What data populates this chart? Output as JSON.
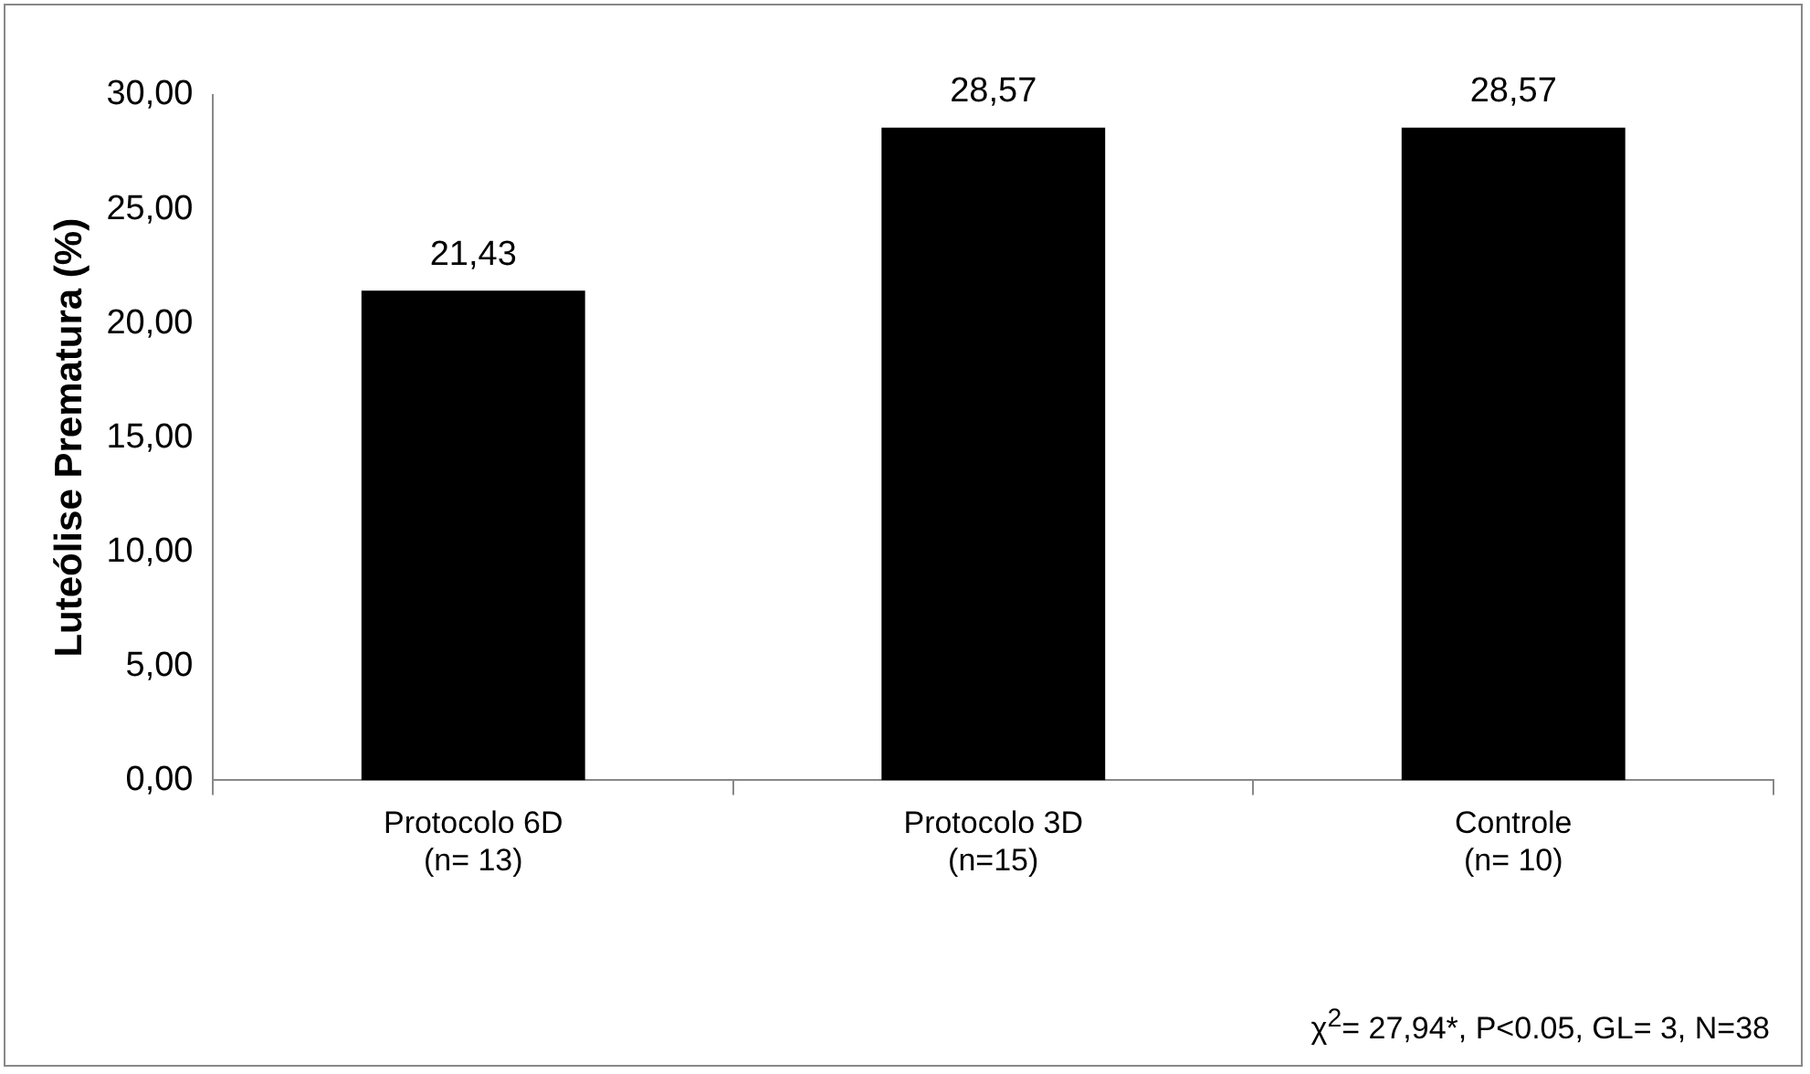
{
  "chart_data": {
    "type": "bar",
    "ylabel": "Luteólise Prematura (%)",
    "categories": [
      "Protocolo 6D\n(n= 13)",
      "Protocolo 3D\n(n=15)",
      "Controle\n(n= 10)"
    ],
    "values": [
      21.43,
      28.57,
      28.57
    ],
    "color": "#000000",
    "value_labels": [
      "21,43",
      "28,57",
      "28,57"
    ],
    "ylim": [
      0,
      30
    ],
    "yticks": [
      {
        "value": 0,
        "label": "0,00"
      },
      {
        "value": 5,
        "label": "5,00"
      },
      {
        "value": 10,
        "label": "10,00"
      },
      {
        "value": 15,
        "label": "15,00"
      },
      {
        "value": 20,
        "label": "20,00"
      },
      {
        "value": 25,
        "label": "25,00"
      },
      {
        "value": 30,
        "label": "30,00"
      }
    ],
    "grid": false,
    "legend": false,
    "annotations": [
      "χ$^{2}$= 27,94*, P<0.05, GL= 3, N=38"
    ]
  }
}
